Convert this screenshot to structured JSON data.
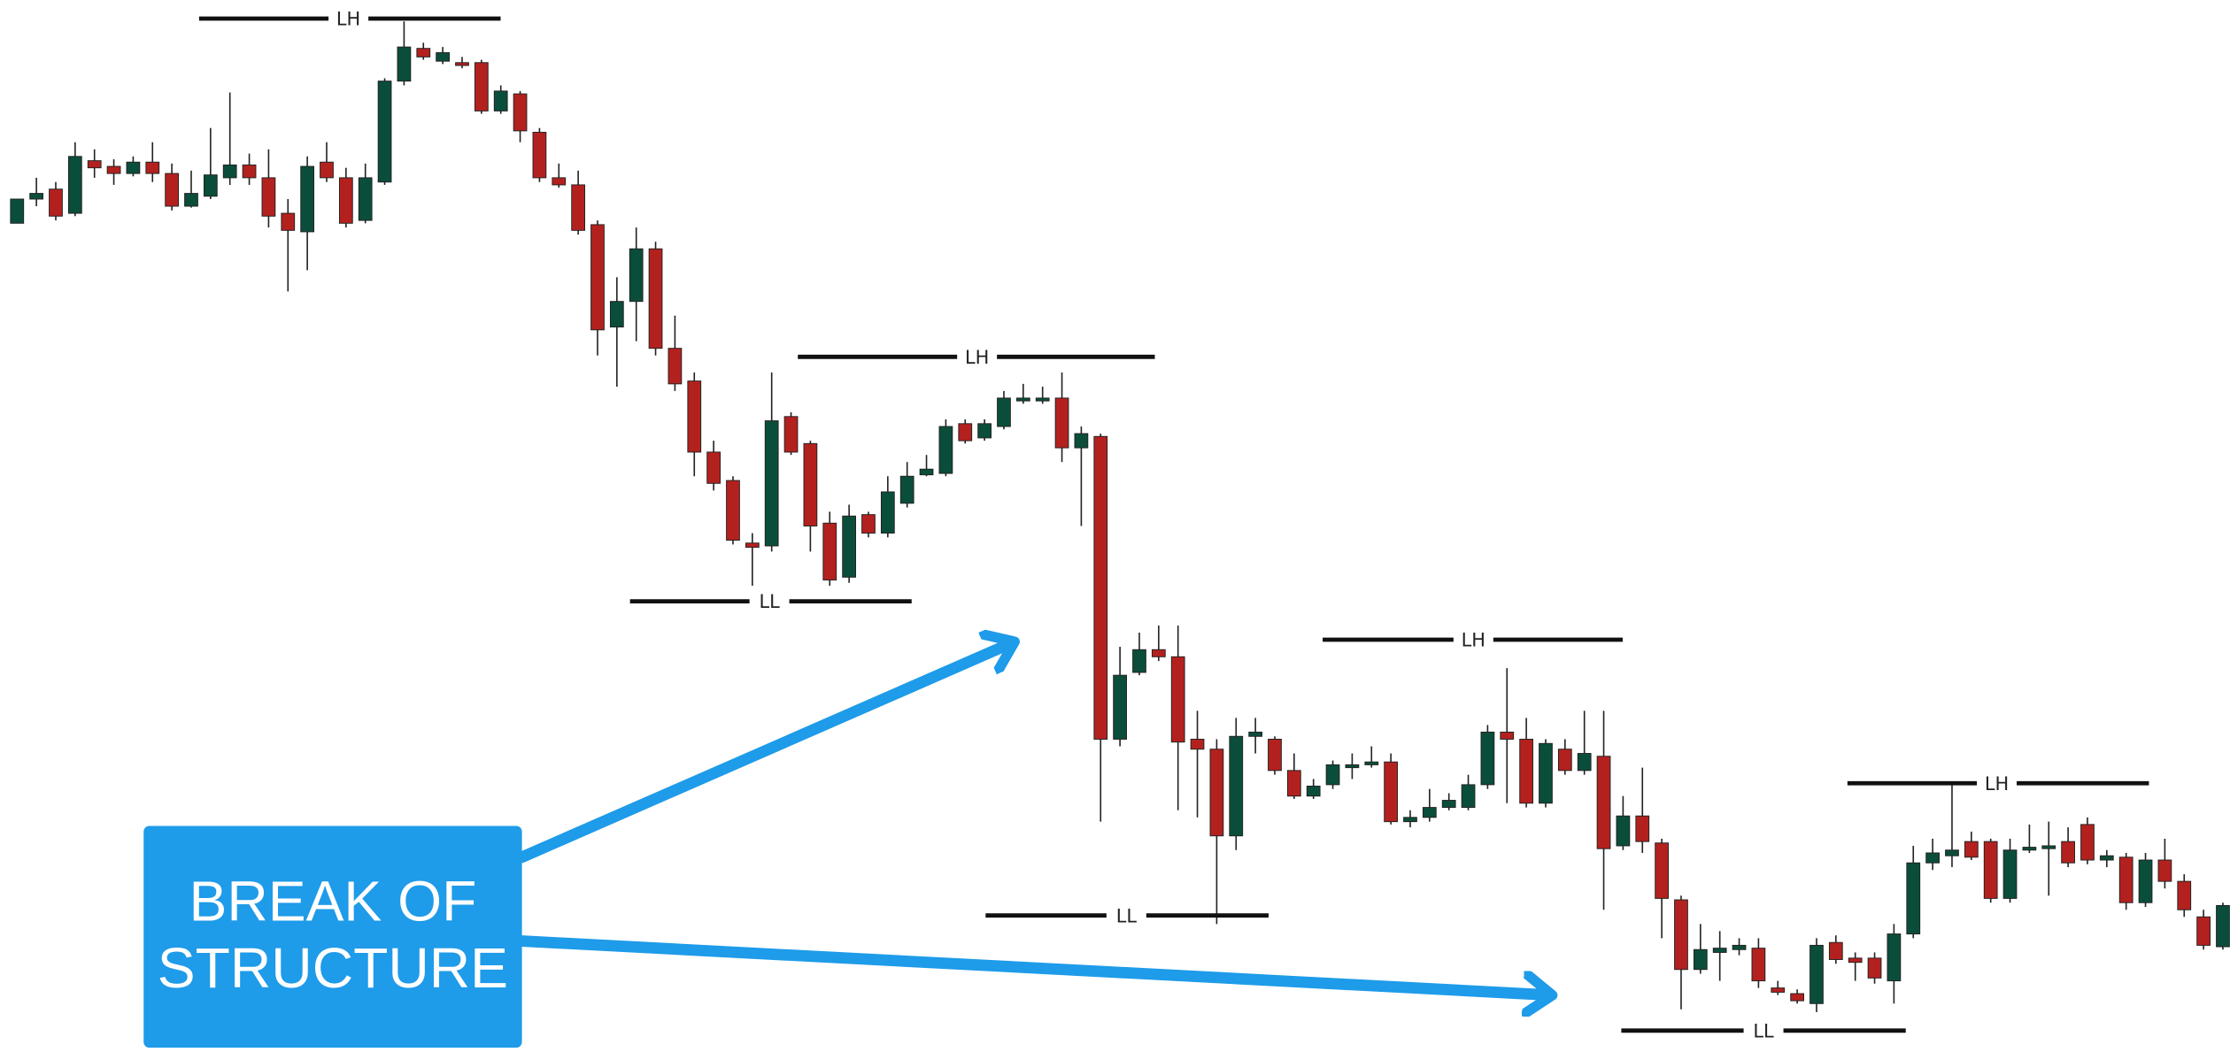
{
  "swing_labels": [
    "LH",
    "LH",
    "LL",
    "LL",
    "LH",
    "LH",
    "LL"
  ],
  "callout": {
    "lines": [
      "BREAK OF",
      "STRUCTURE"
    ]
  }
}
